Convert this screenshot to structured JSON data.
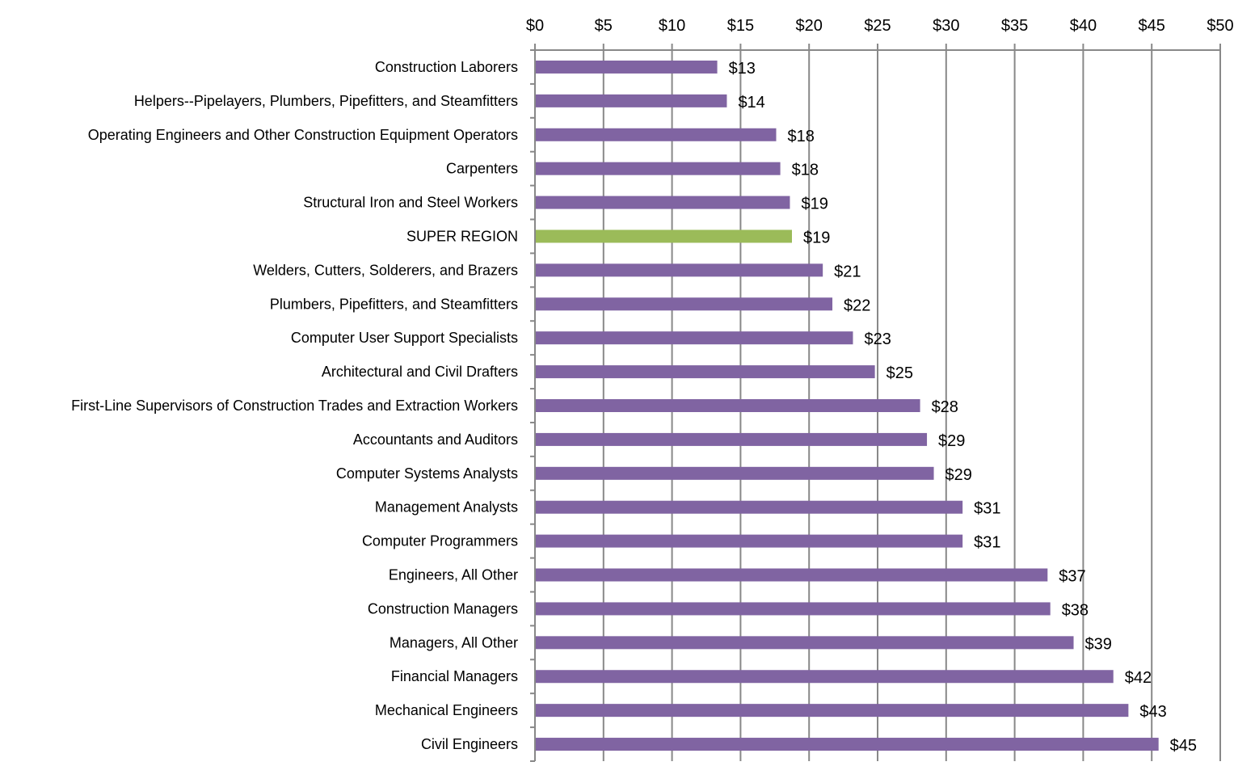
{
  "chart_data": {
    "type": "bar",
    "orientation": "horizontal",
    "title": "",
    "xlabel": "",
    "ylabel": "",
    "xlim": [
      0,
      50
    ],
    "x_axis_position": "top",
    "tick_values": [
      0,
      5,
      10,
      15,
      20,
      25,
      30,
      35,
      40,
      45,
      50
    ],
    "tick_labels": [
      "$0",
      "$5",
      "$10",
      "$15",
      "$20",
      "$25",
      "$30",
      "$35",
      "$40",
      "$45",
      "$50"
    ],
    "grid": true,
    "legend": "none",
    "colors": {
      "default": "#8064a2",
      "highlight": "#9bbb59"
    },
    "categories": [
      "Construction Laborers",
      "Helpers--Pipelayers, Plumbers, Pipefitters, and Steamfitters",
      "Operating Engineers and Other Construction Equipment Operators",
      "Carpenters",
      "Structural Iron and Steel Workers",
      "SUPER REGION",
      "Welders, Cutters, Solderers, and Brazers",
      "Plumbers, Pipefitters, and Steamfitters",
      "Computer User Support Specialists",
      "Architectural and Civil Drafters",
      "First-Line Supervisors of Construction Trades and Extraction Workers",
      "Accountants and Auditors",
      "Computer Systems Analysts",
      "Management Analysts",
      "Computer Programmers",
      "Engineers, All Other",
      "Construction Managers",
      "Managers, All Other",
      "Financial Managers",
      "Mechanical Engineers",
      "Civil Engineers"
    ],
    "values": [
      13.3,
      14.0,
      17.6,
      17.9,
      18.6,
      18.75,
      21.0,
      21.7,
      23.2,
      24.8,
      28.1,
      28.6,
      29.1,
      31.2,
      31.2,
      37.4,
      37.6,
      39.3,
      42.2,
      43.3,
      45.5
    ],
    "data_labels": [
      "$13",
      "$14",
      "$18",
      "$18",
      "$19",
      "$19",
      "$21",
      "$22",
      "$23",
      "$25",
      "$28",
      "$29",
      "$29",
      "$31",
      "$31",
      "$37",
      "$38",
      "$39",
      "$42",
      "$43",
      "$45"
    ],
    "highlight_category": "SUPER REGION"
  }
}
